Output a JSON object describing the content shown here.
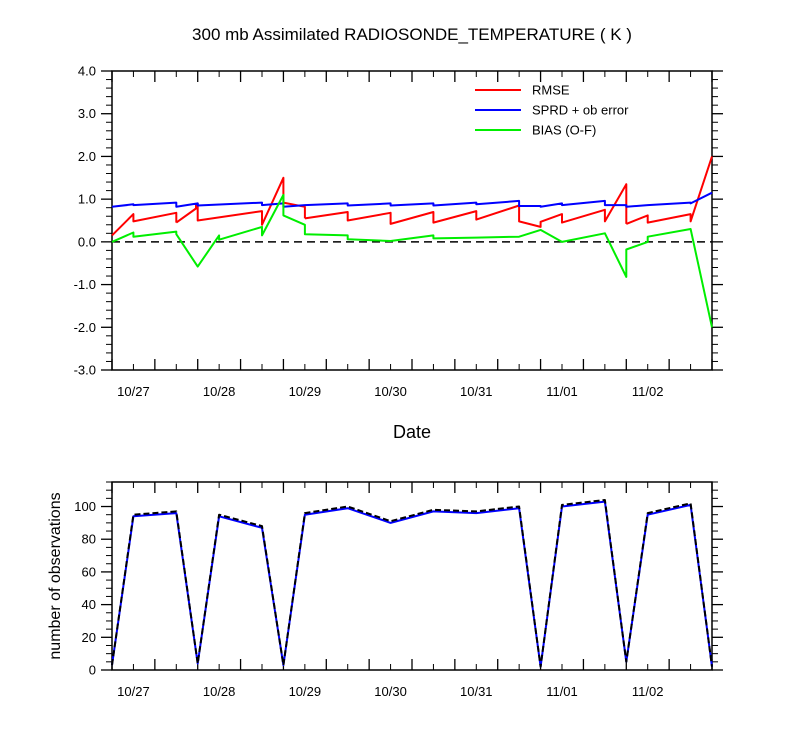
{
  "chart_data": [
    {
      "type": "line",
      "title": "300 mb Assimilated RADIOSONDE_TEMPERATURE ( K )",
      "xlabel": "Date",
      "ylabel": "",
      "xlim": [
        0,
        7.0
      ],
      "ylim": [
        -3.0,
        4.0
      ],
      "y_ticks": [
        "4.0",
        "3.0",
        "2.0",
        "1.0",
        "0.0",
        "-1.0",
        "-2.0",
        "-3.0"
      ],
      "x_tick_labels": [
        "10/27",
        "10/28",
        "10/29",
        "10/30",
        "10/31",
        "11/01",
        "11/02"
      ],
      "legend_position": "top-right",
      "reference_line": 0.0,
      "series": [
        {
          "name": "RMSE",
          "color": "#ff0000",
          "x": [
            0,
            0.25,
            0.75,
            1.0,
            1.75,
            2.0,
            2.5,
            3.0,
            3.5,
            4.0,
            4.5,
            4.75,
            5.0,
            5.5,
            5.75,
            6.0,
            6.5,
            7.0
          ],
          "y": [
            0.15,
            0.48,
            0.45,
            0.5,
            0.4,
            0.55,
            0.5,
            0.42,
            0.45,
            0.52,
            0.48,
            0.32,
            0.45,
            0.48,
            0.45,
            0.45,
            0.48,
            2.0
          ],
          "segments": [
            [
              [
                0.0,
                0.15
              ],
              [
                0.25,
                0.65
              ],
              [
                0.25,
                0.48
              ],
              [
                0.75,
                0.68
              ],
              [
                0.75,
                0.45
              ]
            ],
            [
              [
                0.75,
                0.45
              ],
              [
                0.98,
                0.78
              ],
              [
                0.98,
                0.88
              ],
              [
                1.0,
                0.9
              ],
              [
                1.0,
                0.5
              ],
              [
                1.75,
                0.72
              ],
              [
                1.75,
                0.4
              ],
              [
                2.0,
                1.5
              ],
              [
                2.0,
                0.92
              ],
              [
                2.25,
                0.82
              ],
              [
                2.25,
                0.55
              ]
            ],
            [
              [
                2.25,
                0.55
              ],
              [
                2.75,
                0.7
              ],
              [
                2.75,
                0.5
              ],
              [
                3.25,
                0.68
              ],
              [
                3.25,
                0.42
              ],
              [
                3.75,
                0.7
              ],
              [
                3.75,
                0.45
              ],
              [
                4.25,
                0.72
              ],
              [
                4.25,
                0.52
              ],
              [
                4.75,
                0.85
              ],
              [
                4.75,
                0.48
              ],
              [
                5.0,
                0.35
              ],
              [
                5.0,
                0.47
              ],
              [
                5.25,
                0.65
              ],
              [
                5.25,
                0.45
              ],
              [
                5.75,
                0.75
              ],
              [
                5.75,
                0.48
              ],
              [
                6.0,
                1.35
              ],
              [
                6.0,
                0.42
              ]
            ],
            [
              [
                6.0,
                0.42
              ],
              [
                6.25,
                0.62
              ],
              [
                6.25,
                0.45
              ],
              [
                6.75,
                0.65
              ],
              [
                6.75,
                0.48
              ],
              [
                7.0,
                2.0
              ]
            ]
          ]
        },
        {
          "name": "SPRD + ob error",
          "color": "#0000ff",
          "segments": [
            [
              [
                0.0,
                0.82
              ],
              [
                0.25,
                0.88
              ],
              [
                0.25,
                0.86
              ],
              [
                0.75,
                0.92
              ],
              [
                0.75,
                0.82
              ],
              [
                1.0,
                0.9
              ],
              [
                1.0,
                0.85
              ],
              [
                1.75,
                0.92
              ],
              [
                1.75,
                0.86
              ],
              [
                2.0,
                0.9
              ],
              [
                2.0,
                0.82
              ],
              [
                2.25,
                0.86
              ],
              [
                2.75,
                0.9
              ],
              [
                2.75,
                0.85
              ],
              [
                3.25,
                0.9
              ],
              [
                3.25,
                0.85
              ],
              [
                3.75,
                0.9
              ],
              [
                3.75,
                0.85
              ],
              [
                4.25,
                0.92
              ],
              [
                4.25,
                0.88
              ],
              [
                4.75,
                0.96
              ],
              [
                4.75,
                0.84
              ],
              [
                5.0,
                0.84
              ],
              [
                5.0,
                0.82
              ],
              [
                5.25,
                0.9
              ],
              [
                5.25,
                0.86
              ],
              [
                5.75,
                0.96
              ],
              [
                5.75,
                0.86
              ],
              [
                6.0,
                0.86
              ],
              [
                6.0,
                0.82
              ],
              [
                6.25,
                0.86
              ],
              [
                6.75,
                0.92
              ],
              [
                6.75,
                0.9
              ],
              [
                7.0,
                1.15
              ]
            ]
          ]
        },
        {
          "name": "BIAS (O-F)",
          "color": "#00ee00",
          "segments": [
            [
              [
                0.0,
                0.0
              ],
              [
                0.25,
                0.22
              ],
              [
                0.25,
                0.12
              ],
              [
                0.75,
                0.24
              ],
              [
                0.75,
                0.18
              ],
              [
                1.0,
                -0.58
              ],
              [
                1.25,
                0.15
              ],
              [
                1.25,
                0.05
              ],
              [
                1.75,
                0.35
              ],
              [
                1.75,
                0.15
              ],
              [
                2.0,
                1.1
              ],
              [
                2.0,
                0.62
              ],
              [
                2.25,
                0.4
              ],
              [
                2.25,
                0.18
              ],
              [
                2.75,
                0.15
              ],
              [
                2.75,
                0.06
              ],
              [
                3.25,
                0.02
              ],
              [
                3.75,
                0.15
              ],
              [
                3.75,
                0.08
              ],
              [
                4.25,
                0.1
              ],
              [
                4.75,
                0.12
              ],
              [
                5.0,
                0.28
              ],
              [
                5.25,
                0.0
              ],
              [
                5.75,
                0.2
              ],
              [
                6.0,
                -0.82
              ],
              [
                6.0,
                -0.18
              ],
              [
                6.25,
                0.0
              ],
              [
                6.25,
                0.12
              ],
              [
                6.75,
                0.3
              ],
              [
                7.0,
                -2.0
              ]
            ]
          ]
        }
      ]
    },
    {
      "type": "line",
      "title": "",
      "xlabel": "",
      "ylabel": "number of observations",
      "xlim": [
        0,
        7.0
      ],
      "ylim": [
        0,
        115
      ],
      "y_ticks": [
        "0",
        "20",
        "40",
        "60",
        "80",
        "100"
      ],
      "x_tick_labels": [
        "10/27",
        "10/28",
        "10/29",
        "10/30",
        "10/31",
        "11/01",
        "11/02"
      ],
      "series": [
        {
          "name": "",
          "color": "#0000ff",
          "style": "solid",
          "x": [
            0.0,
            0.25,
            0.75,
            1.0,
            1.25,
            1.75,
            2.0,
            2.25,
            2.75,
            3.25,
            3.75,
            4.25,
            4.75,
            5.0,
            5.25,
            5.75,
            6.0,
            6.25,
            6.75,
            7.0
          ],
          "y": [
            3,
            94,
            96,
            4,
            94,
            87,
            3,
            95,
            99,
            90,
            97,
            96,
            99,
            2,
            100,
            103,
            5,
            95,
            101,
            2
          ]
        },
        {
          "name": "",
          "color": "#000000",
          "style": "dashed",
          "x": [
            0.0,
            0.25,
            0.75,
            1.0,
            1.25,
            1.75,
            2.0,
            2.25,
            2.75,
            3.25,
            3.75,
            4.25,
            4.75,
            5.0,
            5.25,
            5.75,
            6.0,
            6.25,
            6.75,
            7.0
          ],
          "y": [
            3,
            95,
            97,
            4,
            95,
            88,
            3,
            96,
            100,
            91,
            98,
            97,
            100,
            2,
            101,
            104,
            5,
            96,
            102,
            2
          ]
        }
      ]
    }
  ]
}
